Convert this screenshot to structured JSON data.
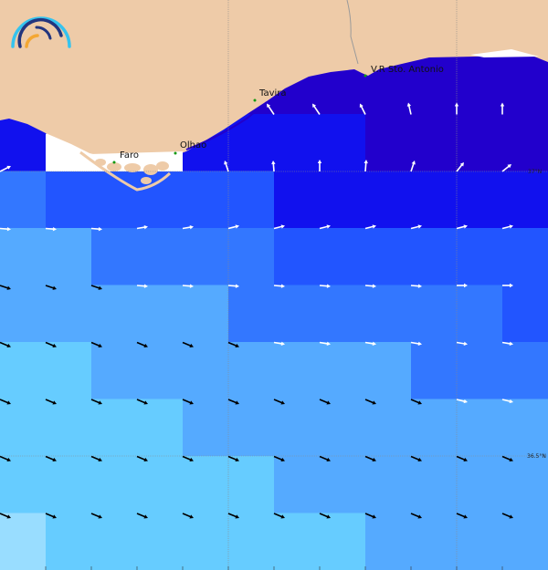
{
  "map": {
    "places": [
      {
        "name": "Faro"
      },
      {
        "name": "Olhao"
      },
      {
        "name": "Tavira"
      },
      {
        "name": "V.R Sto. Antonio"
      }
    ],
    "latitude_labels": [
      "37°N",
      "36.5°N"
    ],
    "colors": {
      "land": "#eecba8",
      "nodata": "#ffffff",
      "place_dot": "#119911",
      "grid": "#8a8a8a",
      "scale": [
        "#2200cc",
        "#1111ee",
        "#2255ff",
        "#3377ff",
        "#55aaff",
        "#66ccff",
        "#99ddff"
      ]
    },
    "cells": [
      [
        null,
        null,
        null,
        null,
        null,
        null,
        null,
        null,
        0,
        0,
        0,
        0
      ],
      [
        null,
        null,
        null,
        null,
        null,
        0,
        0,
        0,
        0,
        0,
        0,
        0
      ],
      [
        1,
        null,
        null,
        null,
        1,
        1,
        1,
        1,
        0,
        0,
        0,
        0
      ],
      [
        3,
        2,
        2,
        2,
        2,
        2,
        1,
        1,
        1,
        1,
        1,
        1
      ],
      [
        4,
        4,
        3,
        3,
        3,
        3,
        2,
        2,
        2,
        2,
        2,
        2
      ],
      [
        4,
        4,
        4,
        4,
        4,
        3,
        3,
        3,
        3,
        3,
        3,
        2
      ],
      [
        5,
        5,
        4,
        4,
        4,
        4,
        4,
        4,
        4,
        3,
        3,
        3
      ],
      [
        5,
        5,
        5,
        5,
        4,
        4,
        4,
        4,
        4,
        4,
        4,
        4
      ],
      [
        5,
        5,
        5,
        5,
        5,
        5,
        4,
        4,
        4,
        4,
        4,
        4
      ],
      [
        6,
        5,
        5,
        5,
        5,
        5,
        5,
        5,
        4,
        4,
        4,
        4
      ]
    ],
    "current_arrows": [
      {
        "row": 2,
        "vectors": [
          null,
          null,
          null,
          null,
          null,
          null,
          [
            -8,
            -12
          ],
          [
            -8,
            -12
          ],
          [
            -6,
            -12
          ],
          [
            -3,
            -13
          ],
          [
            0,
            -13
          ],
          [
            0,
            -13
          ]
        ],
        "color": "white"
      },
      {
        "row": 3,
        "vectors": [
          [
            12,
            -6
          ],
          null,
          null,
          null,
          null,
          [
            -4,
            -12
          ],
          [
            -1,
            -12
          ],
          [
            0,
            -13
          ],
          [
            1,
            -13
          ],
          [
            4,
            -12
          ],
          [
            8,
            -10
          ],
          [
            10,
            -8
          ]
        ],
        "color": "white"
      },
      {
        "row": 4,
        "vectors": [
          [
            12,
            1
          ],
          [
            12,
            1
          ],
          [
            12,
            1
          ],
          [
            12,
            -2
          ],
          [
            12,
            -2
          ],
          [
            12,
            -3
          ],
          [
            12,
            -3
          ],
          [
            12,
            -3
          ],
          [
            12,
            -3
          ],
          [
            12,
            -3
          ],
          [
            12,
            -3
          ],
          [
            12,
            -3
          ]
        ],
        "color": "white"
      },
      {
        "row": 5,
        "vectors": [
          [
            12,
            4
          ],
          [
            12,
            4
          ],
          [
            12,
            4
          ],
          [
            12,
            1
          ],
          [
            12,
            1
          ],
          [
            12,
            1
          ],
          [
            12,
            1
          ],
          [
            12,
            1
          ],
          [
            12,
            1
          ],
          [
            12,
            1
          ],
          [
            12,
            0
          ],
          [
            12,
            0
          ]
        ],
        "colors": [
          "black",
          "black",
          "black",
          "white",
          "white",
          "white",
          "white",
          "white",
          "white",
          "white",
          "white",
          "white"
        ]
      },
      {
        "row": 6,
        "vectors": [
          [
            12,
            5
          ],
          [
            12,
            5
          ],
          [
            12,
            5
          ],
          [
            12,
            5
          ],
          [
            12,
            5
          ],
          [
            12,
            5
          ],
          [
            12,
            2
          ],
          [
            12,
            2
          ],
          [
            12,
            2
          ],
          [
            12,
            2
          ],
          [
            12,
            2
          ],
          [
            12,
            2
          ]
        ],
        "colors": [
          "black",
          "black",
          "black",
          "black",
          "black",
          "black",
          "white",
          "white",
          "white",
          "white",
          "white",
          "white"
        ]
      },
      {
        "row": 7,
        "vectors": [
          [
            12,
            5
          ],
          [
            12,
            5
          ],
          [
            12,
            5
          ],
          [
            12,
            5
          ],
          [
            12,
            5
          ],
          [
            12,
            5
          ],
          [
            12,
            5
          ],
          [
            12,
            5
          ],
          [
            12,
            5
          ],
          [
            12,
            5
          ],
          [
            12,
            3
          ],
          [
            12,
            3
          ]
        ],
        "colors": [
          "black",
          "black",
          "black",
          "black",
          "black",
          "black",
          "black",
          "black",
          "black",
          "black",
          "white",
          "white"
        ]
      },
      {
        "row": 8,
        "vectors": [
          [
            12,
            5
          ],
          [
            12,
            5
          ],
          [
            12,
            5
          ],
          [
            12,
            5
          ],
          [
            12,
            5
          ],
          [
            12,
            5
          ],
          [
            12,
            5
          ],
          [
            12,
            5
          ],
          [
            12,
            5
          ],
          [
            12,
            5
          ],
          [
            12,
            5
          ],
          [
            12,
            5
          ]
        ],
        "color": "black"
      },
      {
        "row": 9,
        "vectors": [
          [
            12,
            5
          ],
          [
            12,
            5
          ],
          [
            12,
            5
          ],
          [
            12,
            5
          ],
          [
            12,
            5
          ],
          [
            12,
            5
          ],
          [
            12,
            5
          ],
          [
            12,
            5
          ],
          [
            12,
            5
          ],
          [
            12,
            5
          ],
          [
            12,
            5
          ],
          [
            12,
            5
          ]
        ],
        "color": "black"
      }
    ]
  }
}
